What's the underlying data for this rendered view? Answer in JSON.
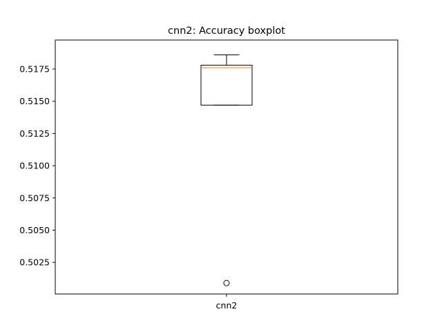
{
  "chart_data": {
    "type": "box",
    "title": "cnn2: Accuracy boxplot",
    "xlabel": "",
    "ylabel": "",
    "categories": [
      "cnn2"
    ],
    "ylim": [
      0.50005,
      0.51975
    ],
    "yticks": [
      0.5025,
      0.505,
      0.5075,
      0.51,
      0.5125,
      0.515,
      0.5175
    ],
    "ytick_labels": [
      "0.5025",
      "0.5050",
      "0.5075",
      "0.5100",
      "0.5125",
      "0.5150",
      "0.5175"
    ],
    "boxes": [
      {
        "name": "cnn2",
        "whisker_low": 0.5147,
        "q1": 0.5147,
        "median": 0.5176,
        "q3": 0.5178,
        "whisker_high": 0.5186,
        "outliers": [
          0.5009
        ]
      }
    ],
    "grid": false,
    "colors": {
      "box": "#000000",
      "median": "#ff7f0e",
      "outlier": "#000000"
    }
  }
}
